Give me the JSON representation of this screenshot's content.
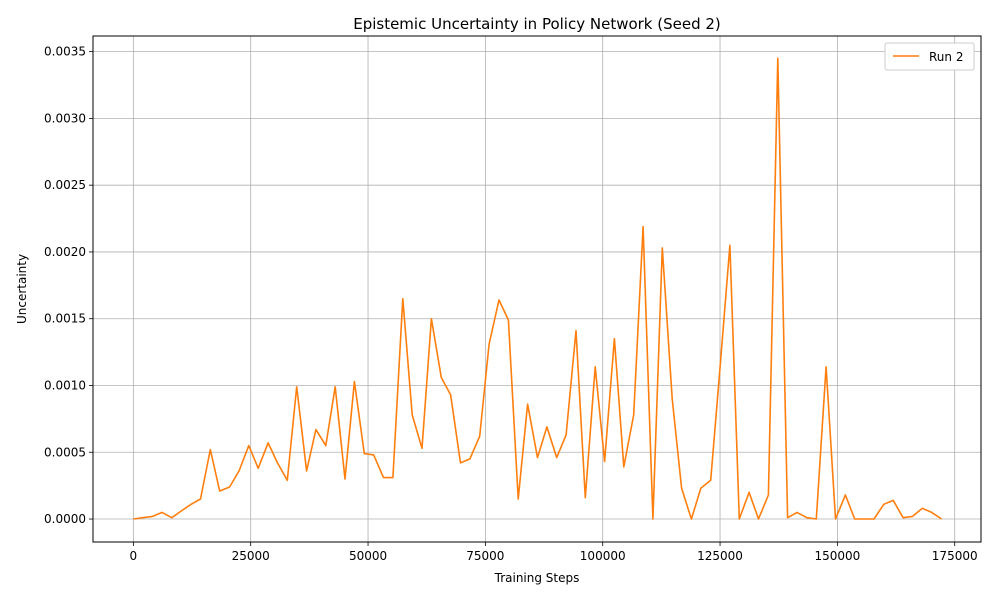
{
  "chart_data": {
    "type": "line",
    "title": "Epistemic Uncertainty in Policy Network (Seed 2)",
    "xlabel": "Training Steps",
    "ylabel": "Uncertainty",
    "xlim": [
      -8600,
      180600
    ],
    "ylim": [
      -0.000172,
      0.003617
    ],
    "xticks": [
      0,
      25000,
      50000,
      75000,
      100000,
      125000,
      150000,
      175000
    ],
    "yticks": [
      0.0,
      0.0005,
      0.001,
      0.0015,
      0.002,
      0.0025,
      0.003,
      0.0035
    ],
    "xtick_labels": [
      "0",
      "25000",
      "50000",
      "75000",
      "100000",
      "125000",
      "150000",
      "175000"
    ],
    "ytick_labels": [
      "0.0000",
      "0.0005",
      "0.0010",
      "0.0015",
      "0.0020",
      "0.0025",
      "0.0030",
      "0.0035"
    ],
    "grid": true,
    "legend_position": "top-right",
    "series": [
      {
        "name": "Run 2",
        "color": "#ff7f0e",
        "x": [
          0,
          2000,
          4100,
          6100,
          8200,
          10200,
          12300,
          14300,
          16400,
          18400,
          20500,
          22500,
          24600,
          26600,
          28700,
          30700,
          32800,
          34800,
          36900,
          38900,
          41000,
          43000,
          45100,
          47100,
          49200,
          51200,
          53300,
          55300,
          57400,
          59400,
          61500,
          63500,
          65600,
          67600,
          69700,
          71700,
          73800,
          75800,
          77900,
          79900,
          82000,
          84000,
          86100,
          88100,
          90200,
          92200,
          94300,
          96300,
          98400,
          100400,
          102500,
          104500,
          106600,
          108600,
          110700,
          112700,
          114800,
          116800,
          118900,
          120900,
          123000,
          125000,
          127100,
          129100,
          131200,
          133200,
          135300,
          137300,
          139400,
          141400,
          143500,
          145500,
          147600,
          149600,
          151700,
          153700,
          155800,
          157800,
          159900,
          161900,
          164000,
          166000,
          168100,
          170100,
          172200
        ],
        "y": [
          0.0,
          1e-05,
          2e-05,
          5e-05,
          1e-05,
          6e-05,
          0.00011,
          0.00015,
          0.00052,
          0.00021,
          0.00024,
          0.00036,
          0.00055,
          0.00038,
          0.00057,
          0.00042,
          0.00029,
          0.00099,
          0.00036,
          0.00067,
          0.00055,
          0.00099,
          0.0003,
          0.00103,
          0.00049,
          0.00048,
          0.00031,
          0.00031,
          0.00165,
          0.00078,
          0.00053,
          0.0015,
          0.00106,
          0.00093,
          0.00042,
          0.00045,
          0.00062,
          0.00131,
          0.00164,
          0.00149,
          0.00015,
          0.00086,
          0.00046,
          0.00069,
          0.00046,
          0.00063,
          0.00141,
          0.00016,
          0.00114,
          0.00043,
          0.00135,
          0.00039,
          0.00078,
          0.00219,
          0.0,
          0.00203,
          0.0009,
          0.00023,
          0.0,
          0.00023,
          0.00029,
          0.00113,
          0.00205,
          0.0,
          0.0002,
          0.0,
          0.00018,
          0.00345,
          1e-05,
          5e-05,
          1e-05,
          0.0,
          0.00114,
          0.0,
          0.00018,
          0.0,
          0.0,
          0.0,
          0.00011,
          0.00014,
          1e-05,
          2e-05,
          8e-05,
          5e-05,
          0.0
        ]
      }
    ]
  }
}
